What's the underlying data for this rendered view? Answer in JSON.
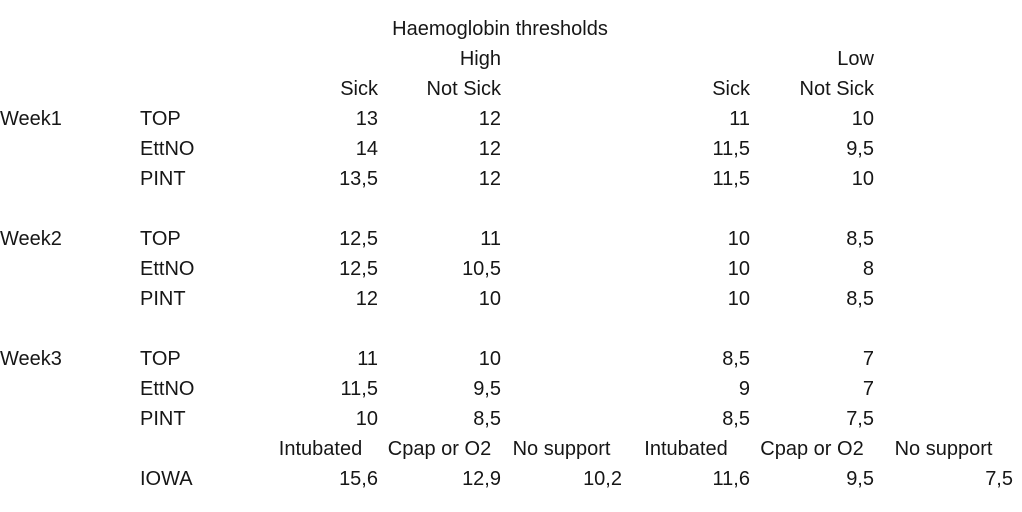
{
  "title": "Haemoglobin thresholds",
  "colors": {
    "background": "#ffffff",
    "text": "#161616"
  },
  "groups": {
    "high": "High",
    "low": "Low"
  },
  "subheaders": {
    "sick": "Sick",
    "not_sick": "Not Sick"
  },
  "weeks": [
    {
      "label": "Week1",
      "rows": [
        {
          "trial": "TOP",
          "high_sick": "13",
          "high_not_sick": "12",
          "low_sick": "11",
          "low_not_sick": "10"
        },
        {
          "trial": "EttNO",
          "high_sick": "14",
          "high_not_sick": "12",
          "low_sick": "11,5",
          "low_not_sick": "9,5"
        },
        {
          "trial": "PINT",
          "high_sick": "13,5",
          "high_not_sick": "12",
          "low_sick": "11,5",
          "low_not_sick": "10"
        }
      ]
    },
    {
      "label": "Week2",
      "rows": [
        {
          "trial": "TOP",
          "high_sick": "12,5",
          "high_not_sick": "11",
          "low_sick": "10",
          "low_not_sick": "8,5"
        },
        {
          "trial": "EttNO",
          "high_sick": "12,5",
          "high_not_sick": "10,5",
          "low_sick": "10",
          "low_not_sick": "8"
        },
        {
          "trial": "PINT",
          "high_sick": "12",
          "high_not_sick": "10",
          "low_sick": "10",
          "low_not_sick": "8,5"
        }
      ]
    },
    {
      "label": "Week3",
      "rows": [
        {
          "trial": "TOP",
          "high_sick": "11",
          "high_not_sick": "10",
          "low_sick": "8,5",
          "low_not_sick": "7"
        },
        {
          "trial": "EttNO",
          "high_sick": "11,5",
          "high_not_sick": "9,5",
          "low_sick": "9",
          "low_not_sick": "7"
        },
        {
          "trial": "PINT",
          "high_sick": "10",
          "high_not_sick": "8,5",
          "low_sick": "8,5",
          "low_not_sick": "7,5"
        }
      ]
    }
  ],
  "support_columns": {
    "high": [
      "Intubated",
      "Cpap or O2",
      "No support"
    ],
    "low": [
      "Intubated",
      "Cpap or O2",
      "No support"
    ]
  },
  "iowa": {
    "label": "IOWA",
    "values": {
      "high_intubated": "15,6",
      "high_cpap": "12,9",
      "high_no_support": "10,2",
      "low_intubated": "11,6",
      "low_cpap": "9,5",
      "low_no_support": "7,5"
    }
  }
}
